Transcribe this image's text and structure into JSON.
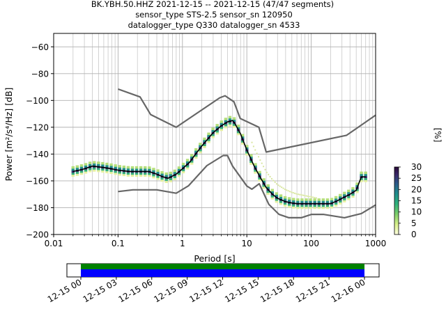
{
  "title_lines": [
    "BK.YBH.50.HHZ   2021-12-15 -- 2021-12-15  (47/47 segments)",
    "sensor_type STS-2.5 sensor_sn 120950",
    "datalogger_type Q330 datalogger_sn 4533"
  ],
  "colorbar": {
    "label": "[%]",
    "ticks": [
      "0",
      "5",
      "10",
      "15",
      "20",
      "25",
      "30"
    ],
    "range": [
      0,
      30
    ]
  },
  "timeline": {
    "ticks": [
      "12-15 00",
      "12-15 03",
      "12-15 06",
      "12-15 09",
      "12-15 12",
      "12-15 15",
      "12-15 18",
      "12-15 21",
      "12-16 00"
    ],
    "colors": {
      "top": "#008000",
      "bottom": "#0000ff"
    }
  },
  "chart_data": {
    "type": "line",
    "xlabel": "Period [s]",
    "ylabel": "Power [m²/s⁴/Hz] [dB]",
    "x_scale": "log",
    "xlim": [
      0.01,
      1000
    ],
    "ylim": [
      -200,
      -50
    ],
    "grid": true,
    "x_ticks": [
      {
        "value": 0.01,
        "label": "0.01"
      },
      {
        "value": 0.1,
        "label": "0.1"
      },
      {
        "value": 1,
        "label": "1"
      },
      {
        "value": 10,
        "label": "10"
      },
      {
        "value": 100,
        "label": "100"
      },
      {
        "value": 1000,
        "label": "1000"
      }
    ],
    "y_ticks": [
      {
        "value": -60,
        "label": "−60"
      },
      {
        "value": -80,
        "label": "−80"
      },
      {
        "value": -100,
        "label": "−100"
      },
      {
        "value": -120,
        "label": "−120"
      },
      {
        "value": -140,
        "label": "−140"
      },
      {
        "value": -160,
        "label": "−160"
      },
      {
        "value": -180,
        "label": "−180"
      },
      {
        "value": -200,
        "label": "−200"
      }
    ],
    "series": [
      {
        "role": "nhnm",
        "color": "#666666",
        "x": [
          0.1,
          0.22,
          0.32,
          0.8,
          3.8,
          4.6,
          6.3,
          7.9,
          15.4,
          20,
          354.8,
          1000
        ],
        "y": [
          -91.5,
          -97.4,
          -110.5,
          -120,
          -98,
          -96.5,
          -101,
          -113.5,
          -120,
          -138.5,
          -126,
          -111
        ]
      },
      {
        "role": "nlnm",
        "color": "#666666",
        "x": [
          0.1,
          0.17,
          0.4,
          0.8,
          1.24,
          2.4,
          4.3,
          5,
          6,
          10,
          12,
          15.6,
          21.9,
          31.6,
          45,
          70,
          101,
          154,
          328,
          600,
          1000
        ],
        "y": [
          -168,
          -166.7,
          -166.7,
          -169.2,
          -163.7,
          -148.6,
          -141.1,
          -141.1,
          -149,
          -163.8,
          -166.2,
          -162.1,
          -177.5,
          -185,
          -187.5,
          -187.5,
          -185,
          -185,
          -187.5,
          -184.4,
          -178
        ]
      },
      {
        "role": "mode",
        "color": "#000000",
        "x": [
          0.02,
          0.025,
          0.03,
          0.04,
          0.06,
          0.08,
          0.1,
          0.15,
          0.2,
          0.3,
          0.4,
          0.5,
          0.6,
          0.8,
          1,
          1.3,
          1.6,
          2,
          3,
          4,
          5,
          6,
          6.5,
          8,
          10,
          13,
          16,
          20,
          25,
          30,
          40,
          50,
          60,
          80,
          100,
          140,
          200,
          250,
          300,
          400,
          500,
          600,
          700
        ],
        "y": [
          -153,
          -152,
          -151,
          -149,
          -150,
          -151,
          -152,
          -153,
          -153,
          -153,
          -155,
          -157,
          -158,
          -155,
          -151,
          -146,
          -140,
          -134,
          -124,
          -119,
          -116,
          -115,
          -117,
          -125,
          -137,
          -149,
          -157,
          -165,
          -170,
          -173,
          -175.5,
          -176.5,
          -177,
          -177,
          -177,
          -177,
          -177,
          -175,
          -173,
          -170,
          -167,
          -157,
          -157
        ]
      }
    ],
    "colorbar_range": [
      0,
      30
    ]
  }
}
